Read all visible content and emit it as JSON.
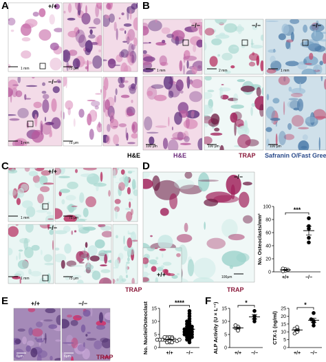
{
  "panels": {
    "A": {
      "letter": "A",
      "genotypes": [
        "+/+",
        "−/−"
      ],
      "scale_bars": [
        "1 mm",
        "75 μm",
        "1 mm",
        "75 μm"
      ],
      "stain": "H&E"
    },
    "B": {
      "letter": "B",
      "genotype": "−/−",
      "scale_bars": [
        "1 mm",
        "2 mm",
        "1 mm",
        "100 μm",
        "100 μm",
        "100 μm"
      ],
      "stains": [
        "H&E",
        "TRAP",
        "Safranin O/Fast Green"
      ]
    },
    "C": {
      "letter": "C",
      "genotypes": [
        "+/+",
        "−/−"
      ],
      "scale_bars": [
        "1 mm",
        "75 μm",
        "1 mm",
        "75 μm"
      ],
      "stain": "TRAP"
    },
    "D": {
      "letter": "D",
      "genotypes": [
        "−/−",
        "+/+"
      ],
      "scale_bar": "100μm",
      "stain": "TRAP"
    },
    "E": {
      "letter": "E",
      "genotypes": [
        "+/+",
        "−/−"
      ],
      "scale_bars": [
        "6μm",
        "6μm"
      ],
      "stain": "TRAP"
    },
    "F": {
      "letter": "F"
    }
  },
  "chart_data": [
    {
      "type": "scatter",
      "ylabel": "No. Osteoclasts/mm²",
      "categories": [
        "+/+",
        "−/−"
      ],
      "series": [
        {
          "values": [
            2,
            4,
            1,
            5,
            3
          ]
        },
        {
          "values": [
            82,
            70,
            66,
            52,
            45
          ]
        }
      ],
      "ylim": [
        0,
        100
      ],
      "yticks": [
        0,
        20,
        40,
        60,
        80,
        100
      ],
      "significance": "***"
    },
    {
      "type": "scatter",
      "ylabel": "No. Nuclei/Osteoclast",
      "categories": [
        "+/+",
        "−/−"
      ],
      "series": [
        {
          "values": [
            2,
            2,
            2.5,
            3,
            3,
            3,
            3,
            3.5,
            3,
            4,
            4,
            2.5,
            3,
            3.5,
            4,
            2,
            3,
            4,
            3,
            3.5
          ]
        },
        {
          "values": [
            14,
            13,
            12,
            11,
            10,
            10,
            9,
            9,
            8,
            8,
            8,
            7,
            7,
            7,
            7,
            6,
            6,
            6,
            6,
            5,
            5,
            5,
            5,
            4,
            4,
            4,
            3,
            3,
            2,
            6.5
          ]
        }
      ],
      "ylim": [
        0,
        15
      ],
      "yticks": [
        0,
        5,
        10,
        15
      ],
      "significance": "****"
    },
    {
      "type": "scatter",
      "ylabel": "ALP Activity (U × L⁻¹)",
      "categories": [
        "+/+",
        "−/−"
      ],
      "series": [
        {
          "values": [
            7,
            8,
            7.5,
            8.5,
            6.5
          ]
        },
        {
          "values": [
            14,
            12,
            10,
            11
          ]
        }
      ],
      "ylim": [
        0,
        15
      ],
      "yticks": [
        0,
        5,
        10,
        15
      ],
      "significance": "*"
    },
    {
      "type": "scatter",
      "ylabel": "CTX-1 (ng/ml)",
      "categories": [
        "+/+",
        "−/−"
      ],
      "series": [
        {
          "values": [
            11,
            12,
            10,
            9,
            13,
            12
          ]
        },
        {
          "values": [
            22,
            17,
            14,
            18,
            16
          ]
        }
      ],
      "ylim": [
        0,
        25
      ],
      "yticks": [
        0,
        5,
        10,
        15,
        20,
        25
      ],
      "significance": "*"
    }
  ]
}
